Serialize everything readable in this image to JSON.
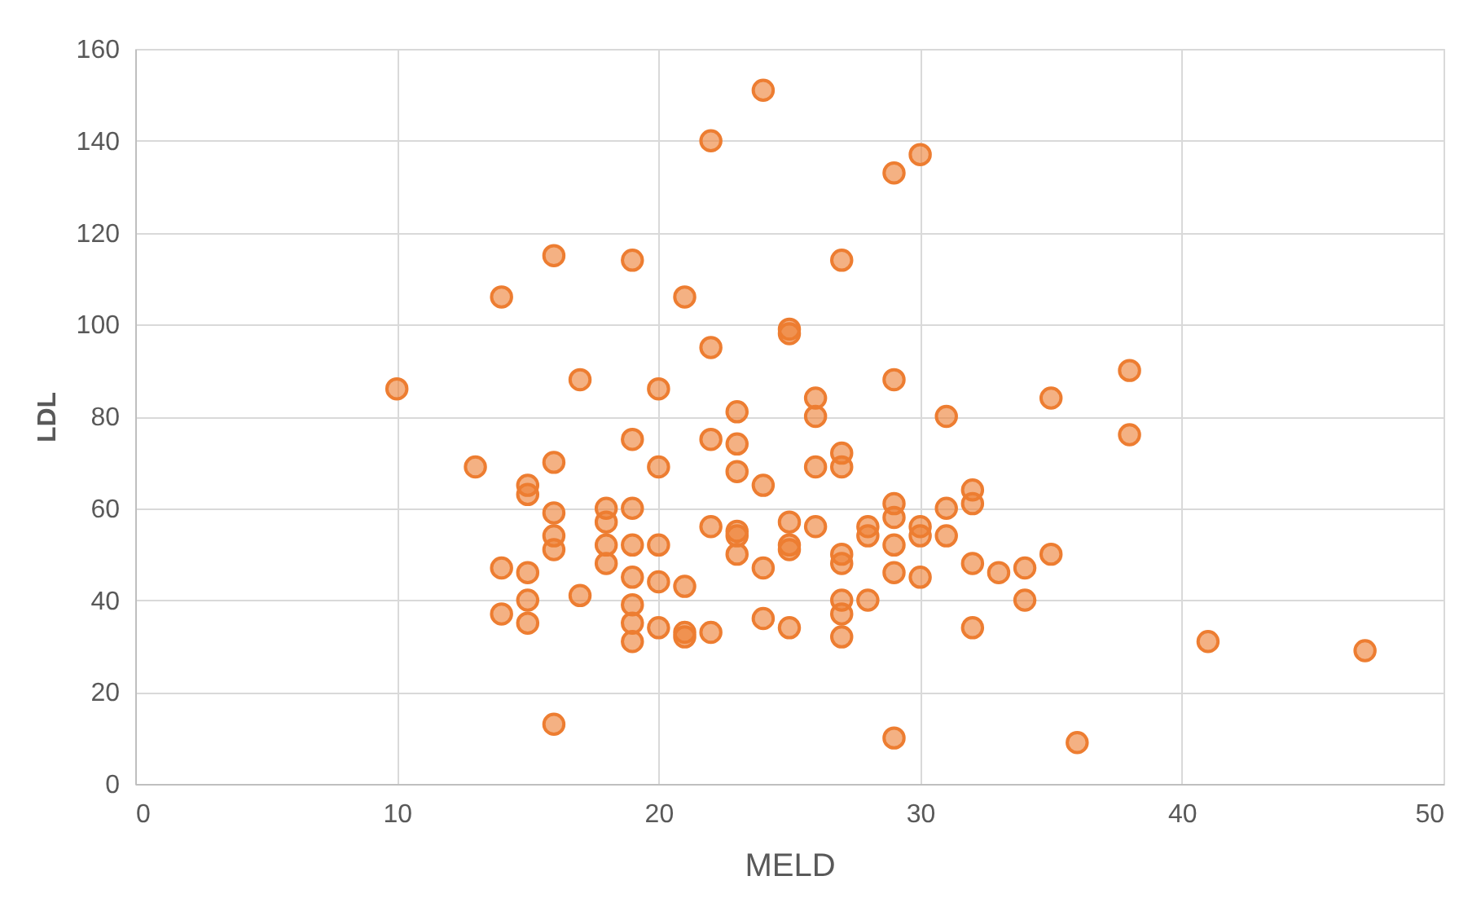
{
  "chart_data": {
    "type": "scatter",
    "xlabel": "MELD",
    "ylabel": "LDL",
    "x": [
      10,
      13,
      14,
      14,
      14,
      15,
      15,
      15,
      15,
      15,
      16,
      16,
      16,
      16,
      16,
      16,
      17,
      17,
      18,
      18,
      18,
      18,
      19,
      19,
      19,
      19,
      19,
      19,
      19,
      19,
      20,
      20,
      20,
      20,
      20,
      21,
      21,
      21,
      21,
      22,
      22,
      22,
      22,
      22,
      23,
      23,
      23,
      23,
      23,
      23,
      24,
      24,
      24,
      24,
      25,
      25,
      25,
      25,
      25,
      25,
      26,
      26,
      26,
      26,
      27,
      27,
      27,
      27,
      27,
      27,
      27,
      27,
      28,
      28,
      28,
      29,
      29,
      29,
      29,
      29,
      29,
      29,
      30,
      30,
      30,
      30,
      31,
      31,
      31,
      32,
      32,
      32,
      32,
      33,
      34,
      34,
      35,
      35,
      36,
      38,
      38,
      41,
      47
    ],
    "series": [
      {
        "color": "#ed7d31",
        "values": [
          86,
          69,
          106,
          47,
          37,
          63,
          65,
          46,
          40,
          35,
          115,
          70,
          59,
          54,
          51,
          13,
          88,
          41,
          60,
          57,
          52,
          48,
          114,
          75,
          60,
          52,
          45,
          39,
          35,
          31,
          86,
          69,
          52,
          44,
          34,
          106,
          43,
          33,
          32,
          140,
          95,
          75,
          56,
          33,
          81,
          74,
          68,
          55,
          54,
          50,
          151,
          65,
          47,
          36,
          99,
          98,
          57,
          52,
          51,
          34,
          84,
          80,
          69,
          56,
          114,
          72,
          69,
          50,
          48,
          40,
          37,
          32,
          56,
          54,
          40,
          133,
          88,
          61,
          58,
          52,
          46,
          10,
          137,
          56,
          54,
          45,
          80,
          60,
          54,
          64,
          61,
          48,
          34,
          46,
          47,
          40,
          84,
          50,
          9,
          90,
          76,
          31,
          29
        ]
      }
    ],
    "xlim": [
      0,
      50
    ],
    "xticks": [
      0,
      10,
      20,
      30,
      40,
      50
    ],
    "ylim": [
      0,
      160
    ],
    "yticks": [
      0,
      20,
      40,
      60,
      80,
      100,
      120,
      140,
      160
    ],
    "grid": true,
    "marker": "circle"
  }
}
